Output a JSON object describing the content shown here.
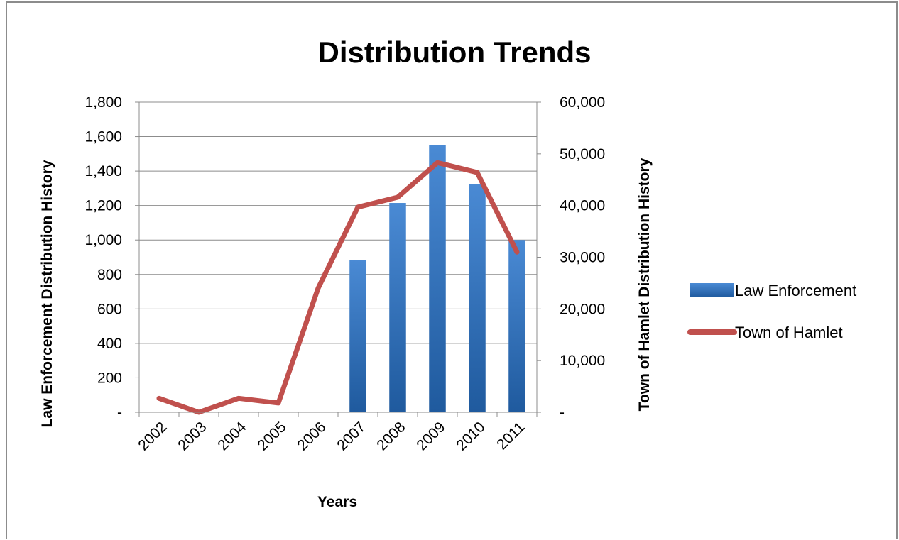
{
  "chart_data": {
    "type": "bar",
    "title": "Distribution Trends",
    "xlabel": "Years",
    "ylabel": "Law Enforcement Distribution History",
    "y2label": "Town of Hamlet Distribution History",
    "categories": [
      "2002",
      "2003",
      "2004",
      "2005",
      "2006",
      "2007",
      "2008",
      "2009",
      "2010",
      "2011"
    ],
    "ylim": [
      0,
      1800
    ],
    "yticks": [
      0,
      200,
      400,
      600,
      800,
      1000,
      1200,
      1400,
      1600,
      1800
    ],
    "ytick_labels": [
      "-",
      "200",
      "400",
      "600",
      "800",
      "1,000",
      "1,200",
      "1,400",
      "1,600",
      "1,800"
    ],
    "y2lim": [
      0,
      60000
    ],
    "y2ticks": [
      0,
      10000,
      20000,
      30000,
      40000,
      50000,
      60000
    ],
    "y2tick_labels": [
      "-",
      "10,000",
      "20,000",
      "30,000",
      "40,000",
      "50,000",
      "60,000"
    ],
    "grid": true,
    "legend_position": "right",
    "series": [
      {
        "name": "Law Enforcement",
        "type": "bar",
        "axis": "left",
        "color": "#3a78c4",
        "values": [
          0,
          0,
          0,
          0,
          0,
          885,
          1215,
          1550,
          1325,
          1000
        ]
      },
      {
        "name": "Town of Hamlet",
        "type": "line",
        "axis": "right",
        "color": "#c0504d",
        "values": [
          2700,
          0,
          2700,
          1800,
          24000,
          39700,
          41600,
          48300,
          46400,
          31000
        ]
      }
    ]
  }
}
